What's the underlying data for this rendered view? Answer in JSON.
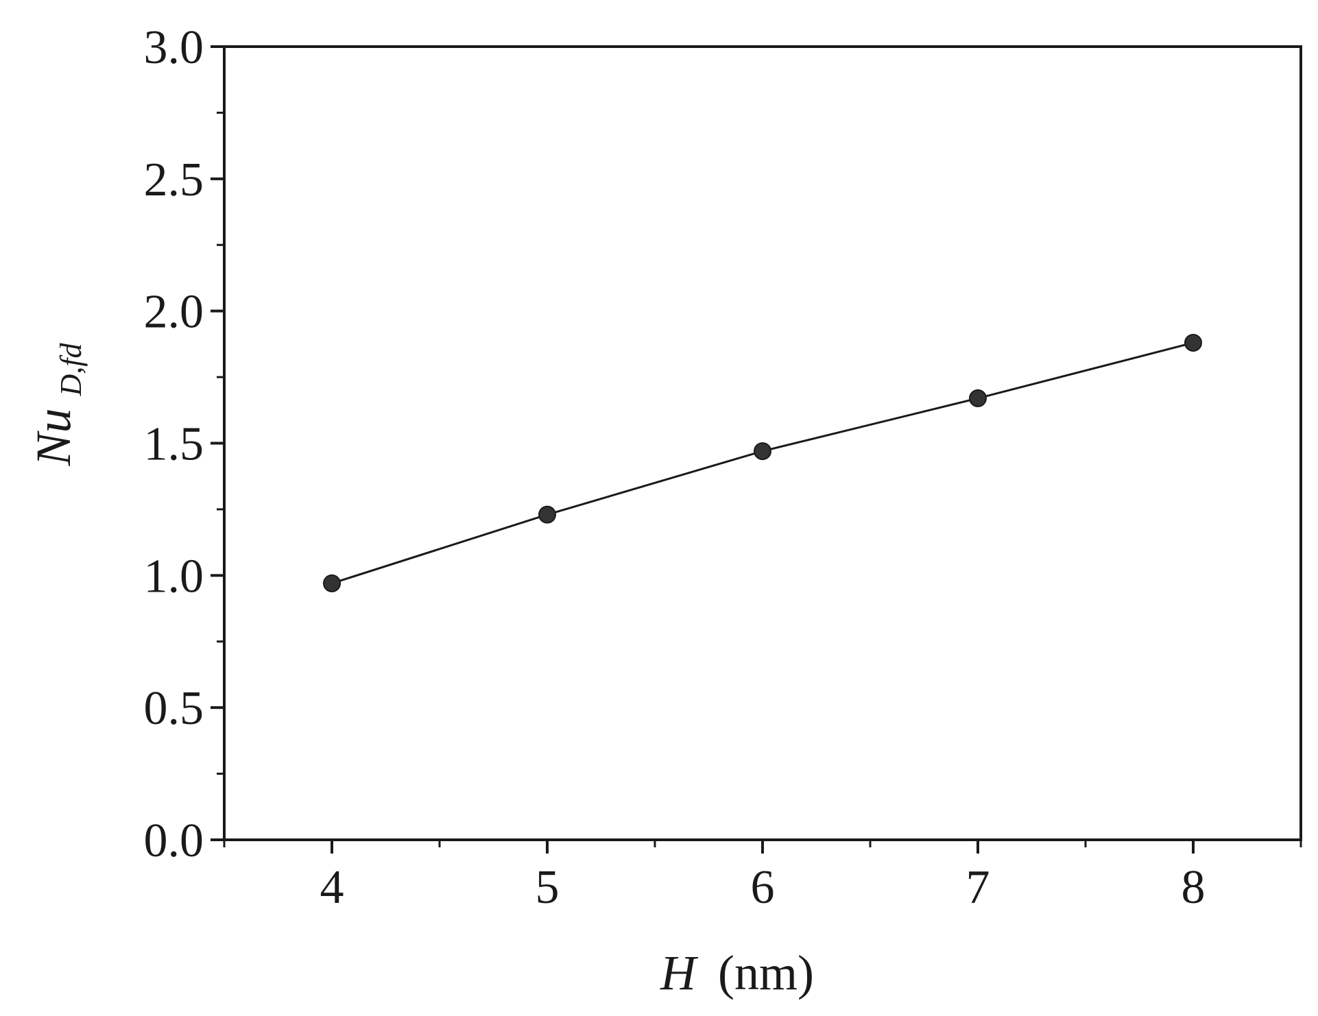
{
  "chart_data": {
    "type": "line",
    "title": "",
    "xlabel": {
      "symbol": "H",
      "unit": "(nm)"
    },
    "ylabel": {
      "symbol": "Nu",
      "subscript": "D,fd"
    },
    "x_ticks": [
      "4",
      "5",
      "6",
      "7",
      "8"
    ],
    "y_ticks": [
      "0.0",
      "0.5",
      "1.0",
      "1.5",
      "2.0",
      "2.5",
      "3.0"
    ],
    "xlim": [
      3.5,
      8.5
    ],
    "ylim": [
      0.0,
      3.0
    ],
    "x_tick_values": [
      4,
      5,
      6,
      7,
      8
    ],
    "y_tick_values": [
      0.0,
      0.5,
      1.0,
      1.5,
      2.0,
      2.5,
      3.0
    ],
    "series": [
      {
        "x": [
          4,
          5,
          6,
          7,
          8
        ],
        "y": [
          0.97,
          1.23,
          1.47,
          1.67,
          1.88
        ],
        "marker": "circle",
        "line": "solid"
      }
    ],
    "grid": false,
    "legend": "none",
    "colors": {
      "line": "#1a1a1a",
      "marker": "#333333",
      "axes": "#1a1a1a"
    }
  }
}
